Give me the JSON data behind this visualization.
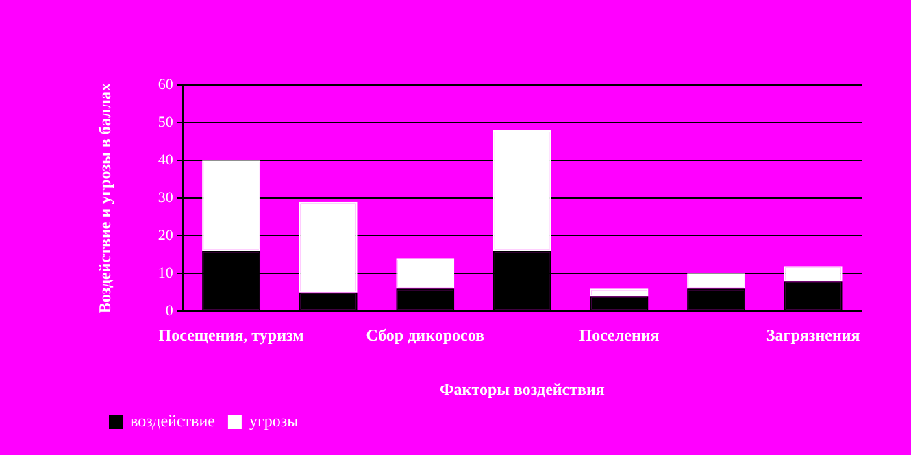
{
  "chart_data": {
    "type": "bar",
    "stacked": true,
    "xlabel": "Факторы воздействия",
    "ylabel": "Воздействие и угрозы в баллах",
    "categories": [
      "Посещения, туризм",
      null,
      "Сбор дикоросов",
      null,
      "Поселения",
      null,
      "Загрязнения"
    ],
    "series": [
      {
        "name": "воздействие",
        "color": "#000000",
        "values": [
          16,
          5,
          6,
          16,
          4,
          6,
          8
        ]
      },
      {
        "name": "угрозы",
        "color": "#ffffff",
        "values": [
          24,
          24,
          8,
          32,
          2,
          4,
          4
        ]
      }
    ],
    "ylim": [
      0,
      60
    ],
    "yticks": [
      0,
      10,
      20,
      30,
      40,
      50,
      60
    ],
    "grid": "y",
    "legend": "bottom left"
  }
}
